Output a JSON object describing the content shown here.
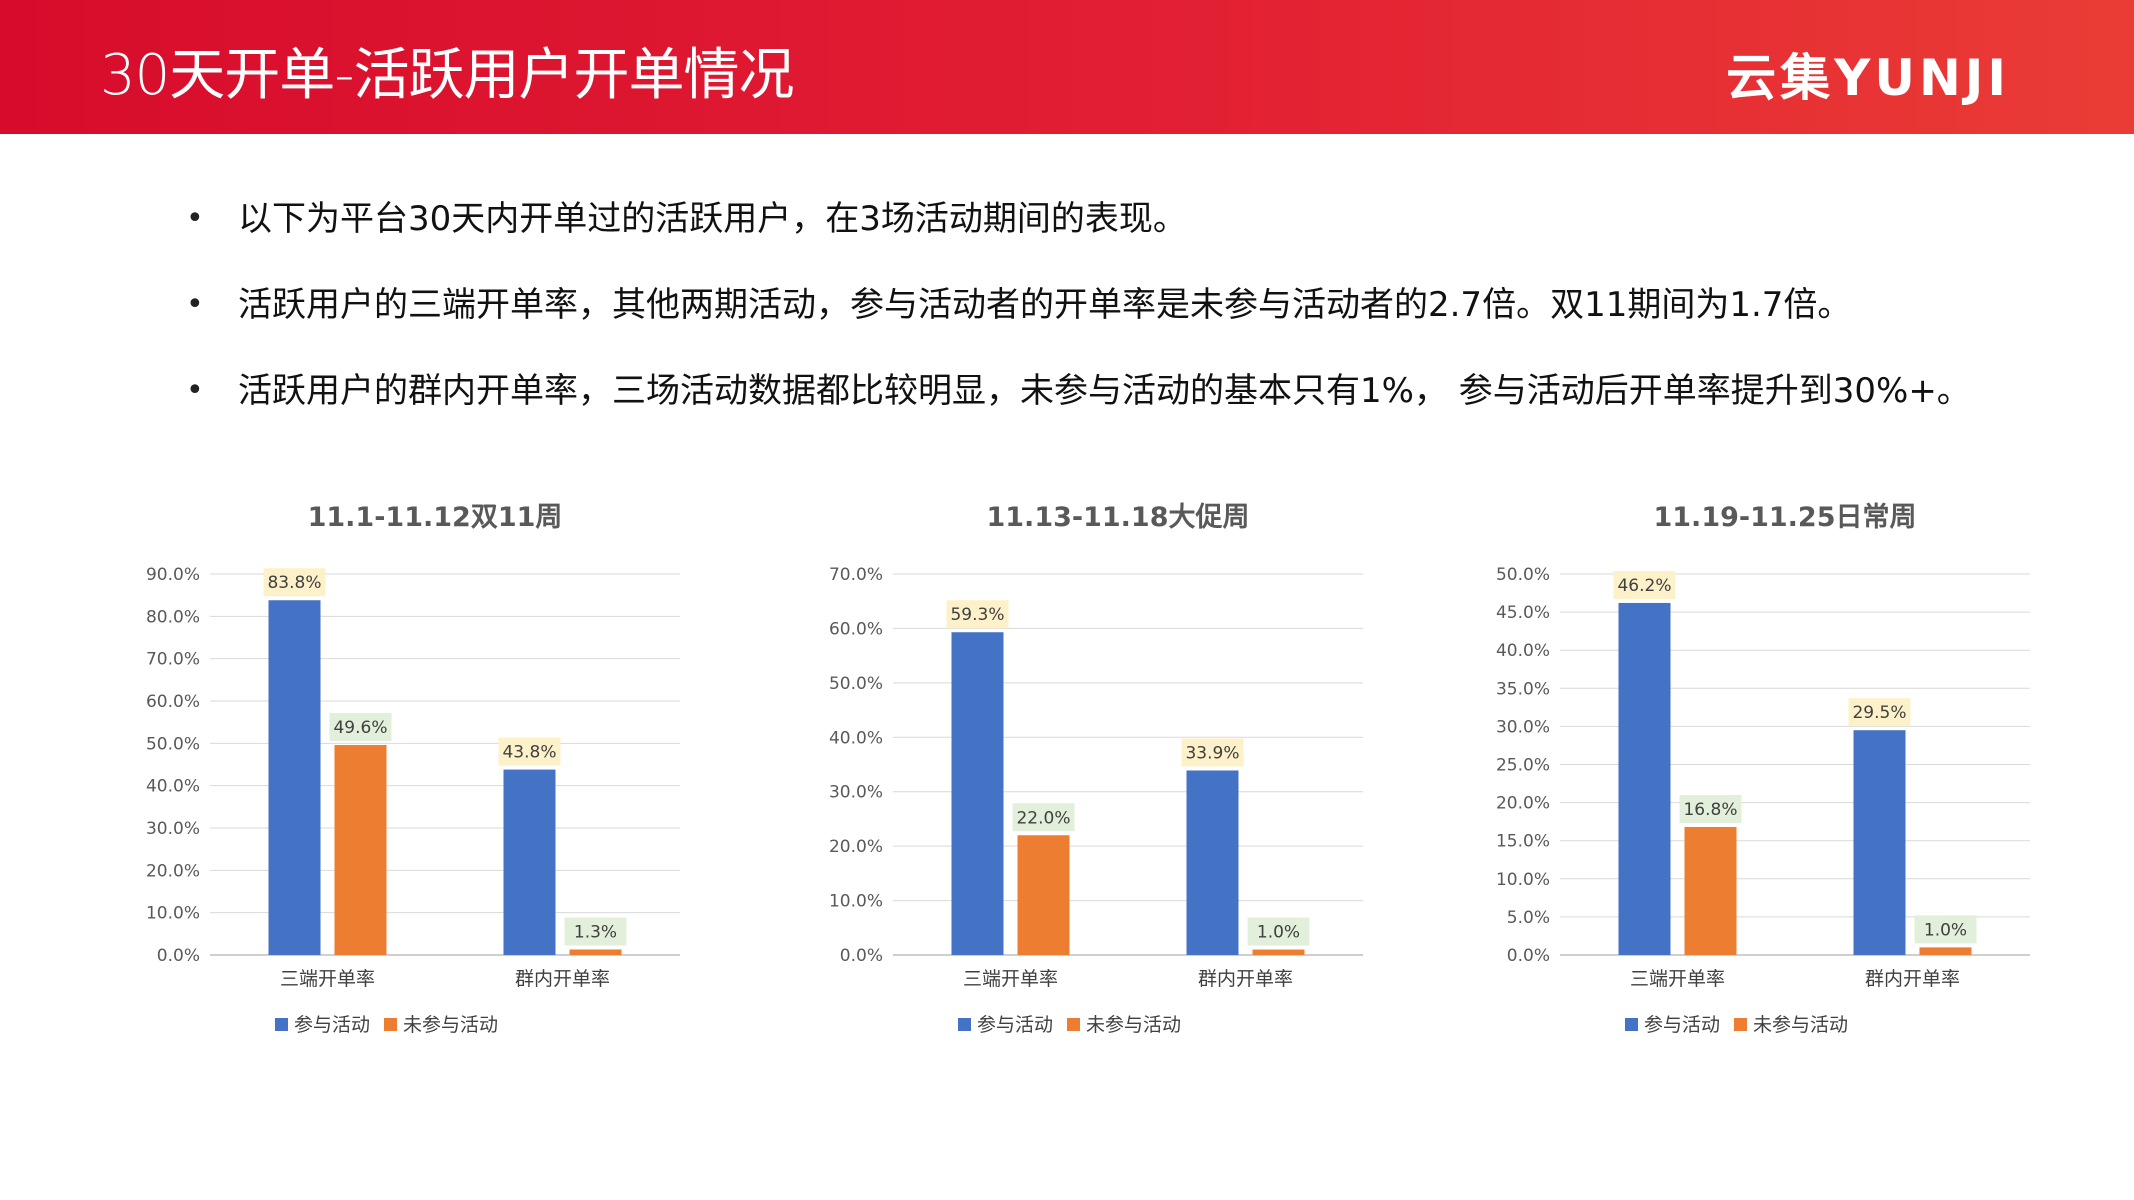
{
  "header": {
    "title": "30天开单-活跃用户开单情况",
    "logo_text": "云集YUNJI"
  },
  "bullets": [
    "以下为平台30天内开单过的活跃用户，在3场活动期间的表现。",
    "活跃用户的三端开单率，其他两期活动，参与活动者的开单率是未参与活动者的2.7倍。双11期间为1.7倍。",
    "活跃用户的群内开单率，三场活动数据都比较明显，未参与活动的基本只有1%， 参与活动后开单率提升到30%+。"
  ],
  "colors": {
    "series_participate": "#4472c4",
    "series_not_participate": "#ed7d31",
    "label_bg_participate": "#fdf1c9",
    "label_bg_not_participate": "#e2efda"
  },
  "chart_data": [
    {
      "type": "bar",
      "title": "11.1-11.12双11周",
      "categories": [
        "三端开单率",
        "群内开单率"
      ],
      "series": [
        {
          "name": "参与活动",
          "values": [
            83.8,
            43.8
          ],
          "labels": [
            "83.8%",
            "43.8%"
          ]
        },
        {
          "name": "未参与活动",
          "values": [
            49.6,
            1.3
          ],
          "labels": [
            "49.6%",
            "1.3%"
          ]
        }
      ],
      "ylim": [
        0,
        90
      ],
      "yticks": [
        "0.0%",
        "10.0%",
        "20.0%",
        "30.0%",
        "40.0%",
        "50.0%",
        "60.0%",
        "70.0%",
        "80.0%",
        "90.0%"
      ],
      "legend": "bottom",
      "grid": true
    },
    {
      "type": "bar",
      "title": "11.13-11.18大促周",
      "categories": [
        "三端开单率",
        "群内开单率"
      ],
      "series": [
        {
          "name": "参与活动",
          "values": [
            59.3,
            33.9
          ],
          "labels": [
            "59.3%",
            "33.9%"
          ]
        },
        {
          "name": "未参与活动",
          "values": [
            22.0,
            1.0
          ],
          "labels": [
            "22.0%",
            "1.0%"
          ]
        }
      ],
      "ylim": [
        0,
        70
      ],
      "yticks": [
        "0.0%",
        "10.0%",
        "20.0%",
        "30.0%",
        "40.0%",
        "50.0%",
        "60.0%",
        "70.0%"
      ],
      "legend": "bottom",
      "grid": true
    },
    {
      "type": "bar",
      "title": "11.19-11.25日常周",
      "categories": [
        "三端开单率",
        "群内开单率"
      ],
      "series": [
        {
          "name": "参与活动",
          "values": [
            46.2,
            29.5
          ],
          "labels": [
            "46.2%",
            "29.5%"
          ]
        },
        {
          "name": "未参与活动",
          "values": [
            16.8,
            1.0
          ],
          "labels": [
            "16.8%",
            "1.0%"
          ]
        }
      ],
      "ylim": [
        0,
        50
      ],
      "yticks": [
        "0.0%",
        "5.0%",
        "10.0%",
        "15.0%",
        "20.0%",
        "25.0%",
        "30.0%",
        "35.0%",
        "40.0%",
        "45.0%",
        "50.0%"
      ],
      "legend": "bottom",
      "grid": true
    }
  ]
}
